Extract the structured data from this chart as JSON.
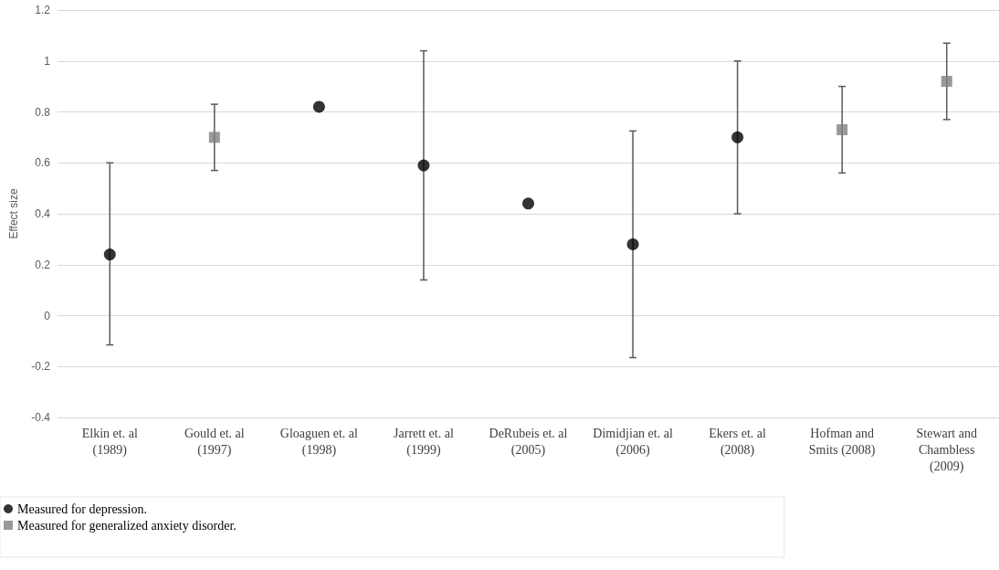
{
  "chart_data": {
    "type": "scatter",
    "ylabel": "Effect size",
    "categories": [
      "Elkin et. al\n(1989)",
      "Gould et. al\n(1997)",
      "Gloaguen et. al\n(1998)",
      "Jarrett et. al\n(1999)",
      "DeRubeis et. al\n(2005)",
      "Dimidjian et. al\n(2006)",
      "Ekers et. al\n(2008)",
      "Hofman and\nSmits (2008)",
      "Stewart and\nChambless\n(2009)"
    ],
    "series": [
      {
        "name": "Measured for depression.",
        "color": "#000000",
        "marker": "circle",
        "values": [
          0.24,
          null,
          0.82,
          0.59,
          0.44,
          0.28,
          0.7,
          null,
          null
        ],
        "errors": [
          [
            -0.115,
            0.6
          ],
          null,
          null,
          [
            0.14,
            1.04
          ],
          null,
          [
            -0.165,
            0.725
          ],
          [
            0.4,
            1.0
          ],
          null,
          null
        ]
      },
      {
        "name": "Measured for generalized anxiety disorder.",
        "color": "#7f7f7f",
        "marker": "square",
        "values": [
          null,
          0.7,
          null,
          null,
          null,
          null,
          null,
          0.73,
          0.92
        ],
        "errors": [
          null,
          [
            0.57,
            0.83
          ],
          null,
          null,
          null,
          null,
          null,
          [
            0.56,
            0.9
          ],
          [
            0.77,
            1.07
          ]
        ]
      }
    ],
    "ylim": [
      -0.4,
      1.2
    ],
    "yticks": [
      -0.4,
      -0.2,
      0,
      0.2,
      0.4,
      0.6,
      0.8,
      1,
      1.2
    ],
    "grid": "y",
    "legend": "bottom left"
  }
}
